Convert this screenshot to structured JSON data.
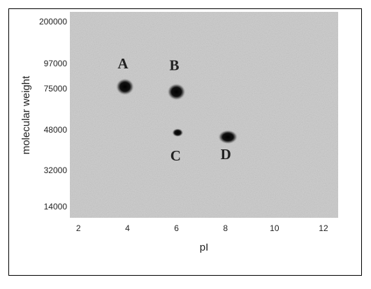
{
  "chart_data": {
    "type": "scatter",
    "xlabel": "pI",
    "ylabel": "molecular weight",
    "xlim": [
      1.65,
      12.6
    ],
    "xticks": [
      2,
      4,
      6,
      8,
      10,
      12
    ],
    "ylim": [
      11500,
      250000
    ],
    "yticks": [
      200000,
      97000,
      75000,
      48000,
      32000,
      14000
    ],
    "log_scale_y": true,
    "series": [
      {
        "color": "#000000",
        "labels": [
          "A",
          "B",
          "C",
          "D"
        ],
        "x": [
          3.9,
          6.0,
          6.05,
          8.1
        ],
        "values": [
          77000,
          73000,
          47000,
          45000
        ]
      }
    ]
  }
}
